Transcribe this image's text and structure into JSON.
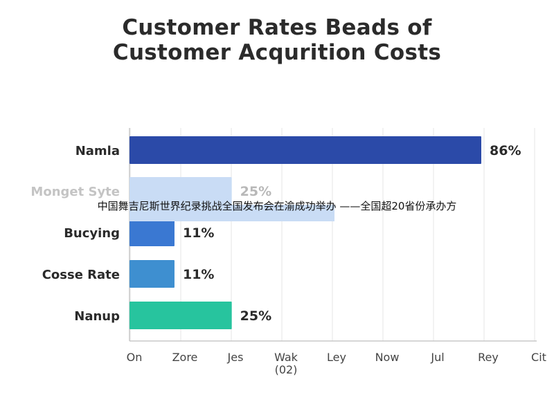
{
  "chart_data": {
    "type": "bar",
    "orientation": "horizontal",
    "title_lines": [
      "Customer Rates Beads of",
      "Customer Acqurition Costs"
    ],
    "categories": [
      "Namla",
      "Monget Syte",
      "Bucying",
      "Cosse Rate",
      "Nanup"
    ],
    "values": [
      86,
      25,
      11,
      11,
      25
    ],
    "value_labels": [
      "86%",
      "25%",
      "11%",
      "11%",
      "25%"
    ],
    "bar_colors": [
      "#2b4aa8",
      "#c9dcf5",
      "#3a78d2",
      "#3e8fd0",
      "#27c49e"
    ],
    "x_tick_labels": [
      "On",
      "Zore",
      "Jes",
      "Wak\n(02)",
      "Ley",
      "Now",
      "Jul",
      "Rey",
      "Cit"
    ],
    "xlabel": "",
    "ylabel": "",
    "grid": true,
    "legend": "none"
  },
  "caption": "中国舞吉尼斯世界纪录挑战全国发布会在渝成功举办 ——全国超20省份承办方"
}
